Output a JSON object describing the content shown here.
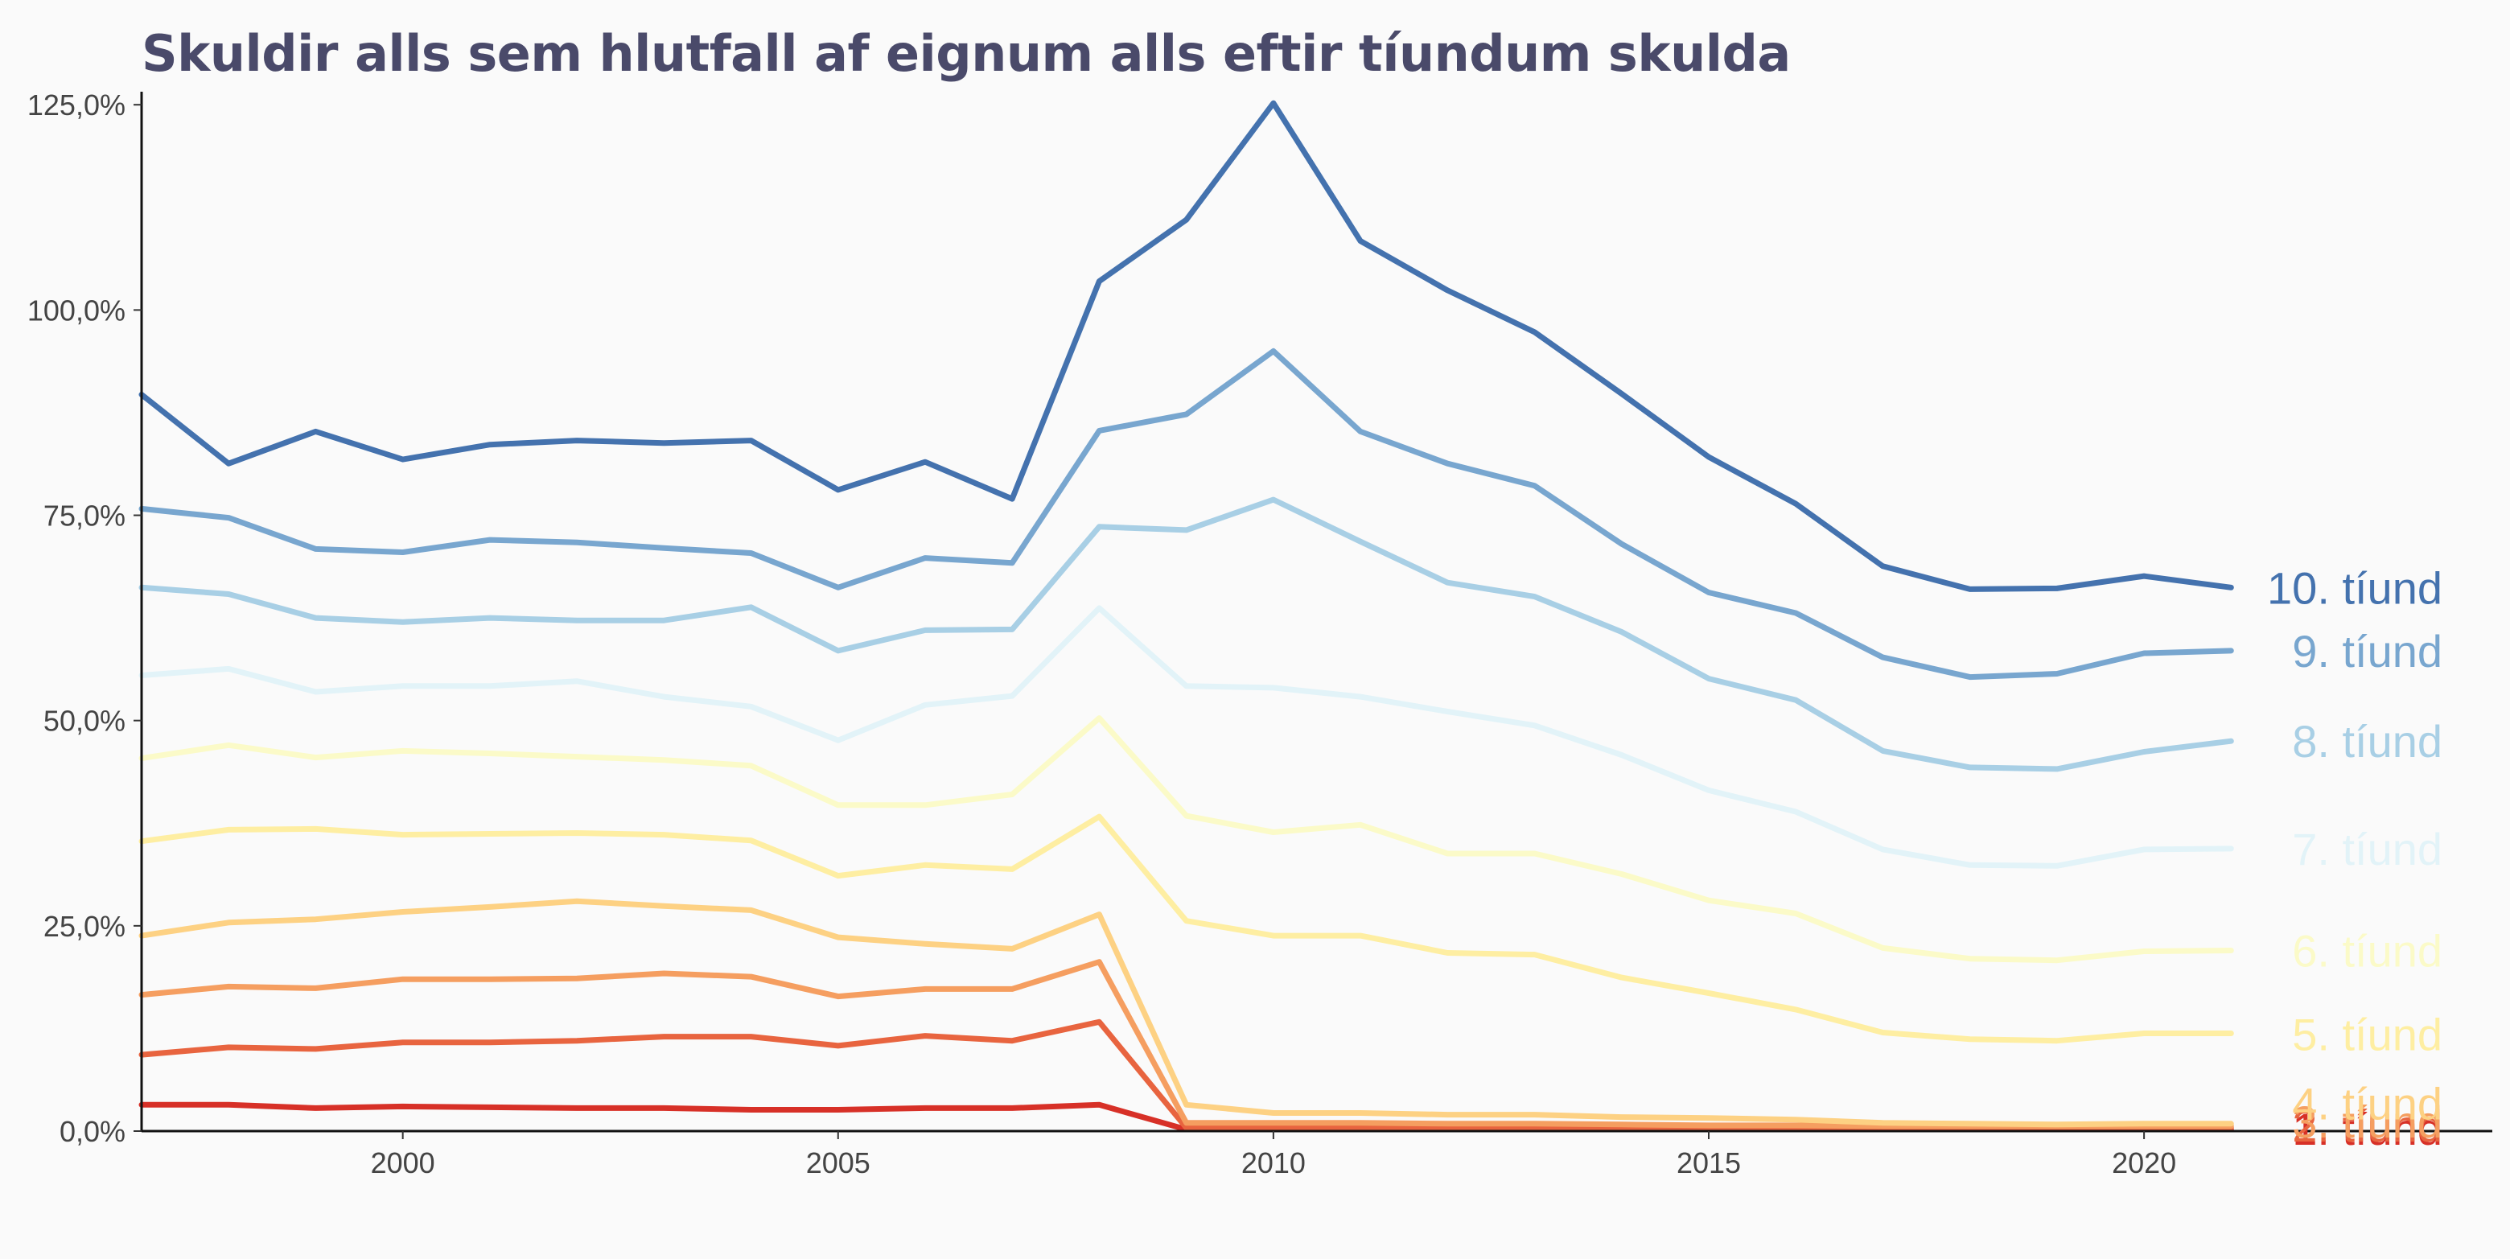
{
  "chart_data": {
    "type": "line",
    "title": "Skuldir alls sem hlutfall af eignum alls eftir tíundum skulda",
    "xlabel": "",
    "ylabel": "",
    "x": [
      1997,
      1998,
      1999,
      2000,
      2001,
      2002,
      2003,
      2004,
      2005,
      2006,
      2007,
      2008,
      2009,
      2010,
      2011,
      2012,
      2013,
      2014,
      2015,
      2016,
      2017,
      2018,
      2019,
      2020,
      2021
    ],
    "xlim": [
      1997,
      2024
    ],
    "ylim": [
      0,
      126
    ],
    "x_ticks": [
      2000,
      2005,
      2010,
      2015,
      2020
    ],
    "x_tick_labels": [
      "2000",
      "2005",
      "2010",
      "2015",
      "2020"
    ],
    "y_ticks": [
      0,
      25,
      50,
      75,
      100,
      125
    ],
    "y_tick_labels": [
      "0,0%",
      "25,0%",
      "50,0%",
      "75,0%",
      "100,0%",
      "125,0%"
    ],
    "grid": false,
    "legend": "direct labels at right end of lines",
    "series": [
      {
        "name": "1. tíund",
        "color": "#d73027",
        "label_y": 0.3,
        "values": [
          3.2,
          3.2,
          2.8,
          3.0,
          2.9,
          2.8,
          2.8,
          2.6,
          2.6,
          2.8,
          2.8,
          3.2,
          0.2,
          0.2,
          0.2,
          0.2,
          0.2,
          0.2,
          0.2,
          0.2,
          0.2,
          0.2,
          0.2,
          0.2,
          0.2
        ]
      },
      {
        "name": "2. tíund",
        "color": "#e8643f",
        "label_y": 0.7,
        "values": [
          9.3,
          10.2,
          10.0,
          10.8,
          10.8,
          11.0,
          11.5,
          11.5,
          10.4,
          11.6,
          11.0,
          13.3,
          0.4,
          0.4,
          0.4,
          0.4,
          0.4,
          0.4,
          0.4,
          0.4,
          0.4,
          0.4,
          0.4,
          0.4,
          0.4
        ]
      },
      {
        "name": "3. tíund",
        "color": "#f59e60",
        "label_y": 1.2,
        "values": [
          16.6,
          17.6,
          17.4,
          18.5,
          18.5,
          18.6,
          19.2,
          18.8,
          16.4,
          17.3,
          17.3,
          20.6,
          1.0,
          1.0,
          1.0,
          0.9,
          0.9,
          0.8,
          0.7,
          0.7,
          0.6,
          0.6,
          0.6,
          0.6,
          0.6
        ]
      },
      {
        "name": "4. tíund",
        "color": "#fdd183",
        "label_y": 3.4,
        "values": [
          23.8,
          25.4,
          25.8,
          26.7,
          27.3,
          28.0,
          27.4,
          26.9,
          23.6,
          22.8,
          22.2,
          26.4,
          3.2,
          2.2,
          2.2,
          2.0,
          2.0,
          1.7,
          1.6,
          1.4,
          1.0,
          0.9,
          0.8,
          0.9,
          0.9
        ]
      },
      {
        "name": "5. tíund",
        "color": "#feeea2",
        "label_y": 11.8,
        "values": [
          35.3,
          36.7,
          36.8,
          36.1,
          36.2,
          36.3,
          36.1,
          35.4,
          31.1,
          32.4,
          31.9,
          38.3,
          25.6,
          23.8,
          23.8,
          21.7,
          21.5,
          18.7,
          16.8,
          14.8,
          12.0,
          11.2,
          11.0,
          11.9,
          11.9
        ]
      },
      {
        "name": "6. tíund",
        "color": "#fbfac8",
        "label_y": 22.0,
        "values": [
          45.4,
          47.0,
          45.5,
          46.3,
          46.0,
          45.6,
          45.2,
          44.5,
          39.7,
          39.7,
          41.0,
          50.3,
          38.4,
          36.4,
          37.3,
          33.8,
          33.8,
          31.3,
          28.1,
          26.5,
          22.3,
          21.0,
          20.8,
          21.9,
          22.0
        ]
      },
      {
        "name": "7. tíund",
        "color": "#e2f3f8",
        "label_y": 34.4,
        "values": [
          55.5,
          56.3,
          53.5,
          54.2,
          54.2,
          54.8,
          52.9,
          51.7,
          47.6,
          51.9,
          53.0,
          63.7,
          54.2,
          54.0,
          52.9,
          51.1,
          49.4,
          45.8,
          41.5,
          38.9,
          34.3,
          32.4,
          32.3,
          34.3,
          34.4
        ]
      },
      {
        "name": "8. tíund",
        "color": "#a8cfe5",
        "label_y": 47.5,
        "values": [
          66.2,
          65.4,
          62.5,
          62.0,
          62.5,
          62.2,
          62.2,
          63.8,
          58.5,
          61.0,
          61.1,
          73.6,
          73.2,
          76.9,
          71.8,
          66.8,
          65.1,
          60.8,
          55.1,
          52.5,
          46.3,
          44.3,
          44.1,
          46.2,
          47.5
        ]
      },
      {
        "name": "9. tíund",
        "color": "#78a6cf",
        "label_y": 58.5,
        "values": [
          75.8,
          74.7,
          70.9,
          70.5,
          72.0,
          71.7,
          71.0,
          70.4,
          66.2,
          69.8,
          69.2,
          85.3,
          87.3,
          95.0,
          85.2,
          81.3,
          78.6,
          71.5,
          65.6,
          63.1,
          57.7,
          55.3,
          55.7,
          58.2,
          58.5
        ]
      },
      {
        "name": "10. tíund",
        "color": "#4472ae",
        "label_y": 66.2,
        "values": [
          89.7,
          81.3,
          85.2,
          81.8,
          83.6,
          84.1,
          83.8,
          84.1,
          78.1,
          81.5,
          77.0,
          103.5,
          111.0,
          125.2,
          108.4,
          102.4,
          97.3,
          89.8,
          82.1,
          76.4,
          68.8,
          66.0,
          66.1,
          67.6,
          66.2
        ]
      }
    ]
  }
}
